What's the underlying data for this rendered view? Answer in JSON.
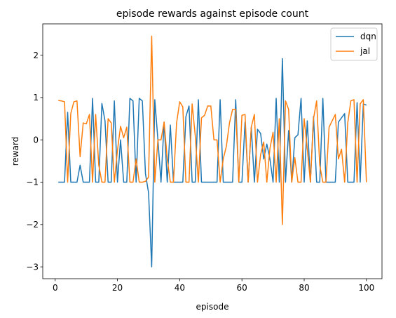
{
  "chart_data": {
    "type": "line",
    "title": "episode rewards against episode count",
    "xlabel": "episode",
    "ylabel": "reward",
    "xlim": [
      -4,
      105
    ],
    "ylim": [
      -3.28,
      2.74
    ],
    "xticks": [
      0,
      20,
      40,
      60,
      80,
      100
    ],
    "yticks": [
      -3,
      -2,
      -1,
      0,
      1,
      2
    ],
    "xtick_labels": [
      "0",
      "20",
      "40",
      "60",
      "80",
      "100"
    ],
    "ytick_labels": [
      "−3",
      "−2",
      "−1",
      "0",
      "1",
      "2"
    ],
    "legend": "top-right",
    "grid": false,
    "x": [
      1,
      2,
      3,
      4,
      5,
      6,
      7,
      8,
      9,
      10,
      11,
      12,
      13,
      14,
      15,
      16,
      17,
      18,
      19,
      20,
      21,
      22,
      23,
      24,
      25,
      26,
      27,
      28,
      29,
      30,
      31,
      32,
      33,
      34,
      35,
      36,
      37,
      38,
      39,
      40,
      41,
      42,
      43,
      44,
      45,
      46,
      47,
      48,
      49,
      50,
      51,
      52,
      53,
      54,
      55,
      56,
      57,
      58,
      59,
      60,
      61,
      62,
      63,
      64,
      65,
      66,
      67,
      68,
      69,
      70,
      71,
      72,
      73,
      74,
      75,
      76,
      77,
      78,
      79,
      80,
      81,
      82,
      83,
      84,
      85,
      86,
      87,
      88,
      89,
      90,
      91,
      92,
      93,
      94,
      95,
      96,
      97,
      98,
      99,
      100
    ],
    "series": [
      {
        "name": "dqn",
        "color": "#1f77b4",
        "values": [
          -1,
          -1,
          -1,
          0.65,
          -1,
          -1,
          -1,
          -0.6,
          -1,
          -1,
          -1,
          0.98,
          -1,
          -1,
          0.86,
          0.45,
          -1,
          -1,
          0.92,
          -1,
          0,
          -1,
          -1,
          0.98,
          0.92,
          -1,
          0.98,
          0.92,
          -0.8,
          -1.25,
          -3.0,
          0.95,
          0,
          -1,
          0.42,
          -1,
          0.35,
          -1,
          -1,
          -1,
          -1,
          0.55,
          0.8,
          -1,
          -1,
          0.95,
          -1,
          -1,
          -1,
          -1,
          -1,
          -1,
          0.95,
          -1,
          -1,
          -1,
          -1,
          0.95,
          -1,
          -1,
          0.42,
          -1,
          0.3,
          -1,
          0.25,
          0.15,
          -0.45,
          -0.1,
          -0.45,
          -1,
          0.98,
          -1,
          1.92,
          -1,
          0.22,
          -1,
          0.05,
          0.12,
          0.98,
          -1,
          0.45,
          -1,
          0.55,
          -1,
          -1,
          0.98,
          -1,
          -1,
          -1,
          -1,
          0.42,
          0.52,
          0.62,
          -1,
          -1,
          -1,
          0.88,
          -1,
          0.85,
          0.82
        ]
      },
      {
        "name": "jal",
        "color": "#ff7f0e",
        "values": [
          0.93,
          0.92,
          0.9,
          -1,
          0.62,
          0.9,
          0.92,
          -0.4,
          0.4,
          0.38,
          0.6,
          -1,
          0.6,
          -0.6,
          -1,
          -1,
          0.5,
          0.4,
          -1,
          -0.25,
          0.32,
          0.05,
          0.3,
          -1,
          -1,
          -0.45,
          -1,
          -1,
          -0.98,
          -0.88,
          2.45,
          -1,
          0,
          0,
          0.42,
          -0.45,
          -1,
          -1,
          0.4,
          0.9,
          0.78,
          -1,
          -1,
          0.85,
          0.1,
          -1,
          0.52,
          0.58,
          0.8,
          0.8,
          0,
          0,
          -1,
          -0.45,
          -0.15,
          0.4,
          0.72,
          0.72,
          -1,
          0.58,
          0.6,
          -1,
          0.3,
          0.6,
          -1,
          -0.35,
          -0.05,
          -1,
          -0.2,
          0.18,
          -1,
          0.5,
          -2.0,
          0.92,
          0.72,
          -1,
          -0.42,
          -1,
          -1,
          0.5,
          -0.22,
          -1,
          0.5,
          0.92,
          -0.6,
          -1,
          -1,
          0.3,
          0.45,
          0.6,
          -0.45,
          -0.22,
          -1,
          0.4,
          0.92,
          0.95,
          -1,
          0.85,
          0.95,
          -1
        ]
      }
    ]
  }
}
